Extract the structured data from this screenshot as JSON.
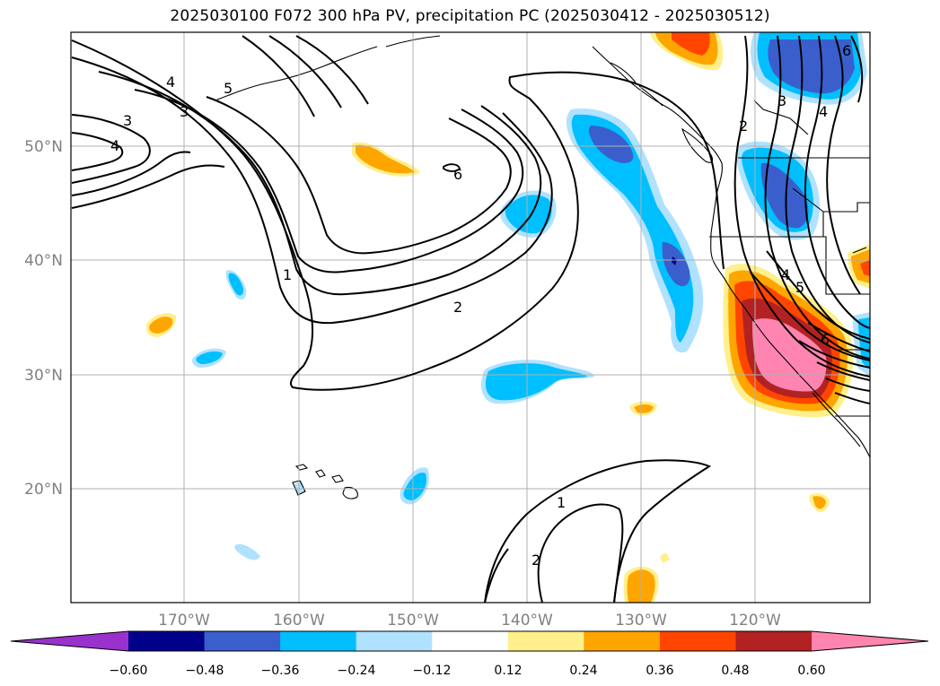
{
  "title": "2025030100 F072 300 hPa PV, precipitation PC (2025030412 - 2025030512)",
  "map": {
    "lat_range": [
      10,
      60
    ],
    "lon_range": [
      -180,
      -110
    ],
    "lat_ticks": [
      {
        "value": 50,
        "label": "50°N"
      },
      {
        "value": 40,
        "label": "40°N"
      },
      {
        "value": 30,
        "label": "30°N"
      },
      {
        "value": 20,
        "label": "20°N"
      }
    ],
    "lon_ticks": [
      {
        "value": -170,
        "label": "170°W"
      },
      {
        "value": -160,
        "label": "160°W"
      },
      {
        "value": -150,
        "label": "150°W"
      },
      {
        "value": -140,
        "label": "140°W"
      },
      {
        "value": -130,
        "label": "130°W"
      },
      {
        "value": -120,
        "label": "120°W"
      }
    ],
    "grid": true,
    "contour_labels": [
      "4",
      "3",
      "4",
      "5",
      "3",
      "6",
      "1",
      "2",
      "2",
      "3",
      "4",
      "6",
      "4",
      "5",
      "6",
      "1",
      "2"
    ]
  },
  "colorbar": {
    "levels": [
      "−0.60",
      "−0.48",
      "−0.36",
      "−0.24",
      "−0.12",
      "0.12",
      "0.24",
      "0.36",
      "0.48",
      "0.60"
    ],
    "colors": [
      "#9932cc",
      "#00008b",
      "#3a5fcd",
      "#00bfff",
      "#b0e2ff",
      "#ffffff",
      "#fff08c",
      "#ffa500",
      "#ff4500",
      "#b22222",
      "#ff85b0"
    ]
  }
}
